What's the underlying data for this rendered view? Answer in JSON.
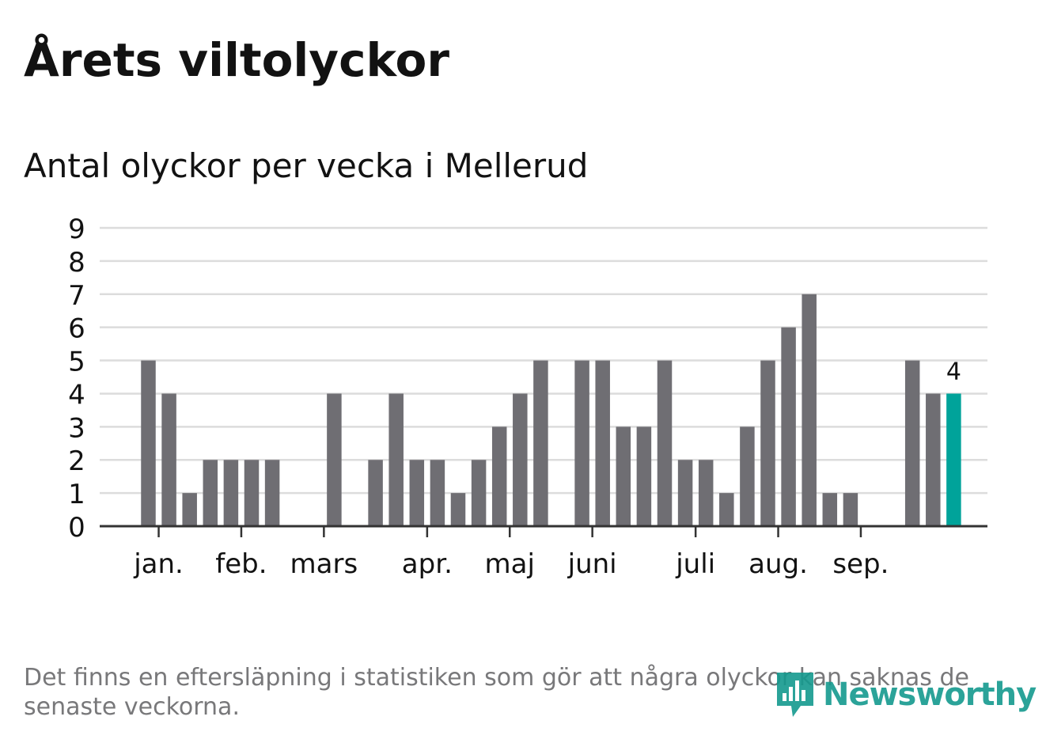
{
  "title": "Årets viltolyckor",
  "subtitle": "Antal olyckor per vecka i Mellerud",
  "footnote": "Det finns en eftersläpning i statistiken som gör att några olyckor kan saknas de senaste veckorna.",
  "logo": {
    "text": "Newsworthy",
    "icon": "newsworthy-bars-icon"
  },
  "colors": {
    "bar": "#6f6e73",
    "highlight": "#00a39a",
    "grid": "#dcdcdc",
    "axis": "#333333",
    "text": "#121212",
    "muted": "#78787a",
    "brand": "#159a8e"
  },
  "chart_data": {
    "type": "bar",
    "title": "Antal olyckor per vecka i Mellerud",
    "xlabel": "",
    "ylabel": "",
    "ylim": [
      0,
      9
    ],
    "yticks": [
      0,
      1,
      2,
      3,
      4,
      5,
      6,
      7,
      8,
      9
    ],
    "grid": true,
    "weeks": [
      1,
      2,
      3,
      4,
      5,
      6,
      7,
      8,
      9,
      10,
      11,
      12,
      13,
      14,
      15,
      16,
      17,
      18,
      19,
      20,
      21,
      22,
      23,
      24,
      25,
      26,
      27,
      28,
      29,
      30,
      31,
      32,
      33,
      34,
      35,
      36,
      37,
      38,
      39,
      40,
      41,
      42
    ],
    "values": [
      0,
      0,
      5,
      4,
      1,
      2,
      2,
      2,
      2,
      0,
      0,
      4,
      0,
      2,
      4,
      2,
      2,
      1,
      2,
      3,
      4,
      5,
      0,
      5,
      5,
      3,
      3,
      5,
      2,
      2,
      1,
      3,
      5,
      6,
      7,
      1,
      1,
      0,
      0,
      5,
      4,
      4
    ],
    "highlight_index": 41,
    "highlight_label": "4",
    "month_labels": [
      {
        "label": "jan.",
        "position": 2.5
      },
      {
        "label": "feb.",
        "position": 6.5
      },
      {
        "label": "mars",
        "position": 10.5
      },
      {
        "label": "apr.",
        "position": 15.5
      },
      {
        "label": "maj",
        "position": 19.5
      },
      {
        "label": "juni",
        "position": 23.5
      },
      {
        "label": "juli",
        "position": 28.5
      },
      {
        "label": "aug.",
        "position": 32.5
      },
      {
        "label": "sep.",
        "position": 36.5
      }
    ]
  }
}
